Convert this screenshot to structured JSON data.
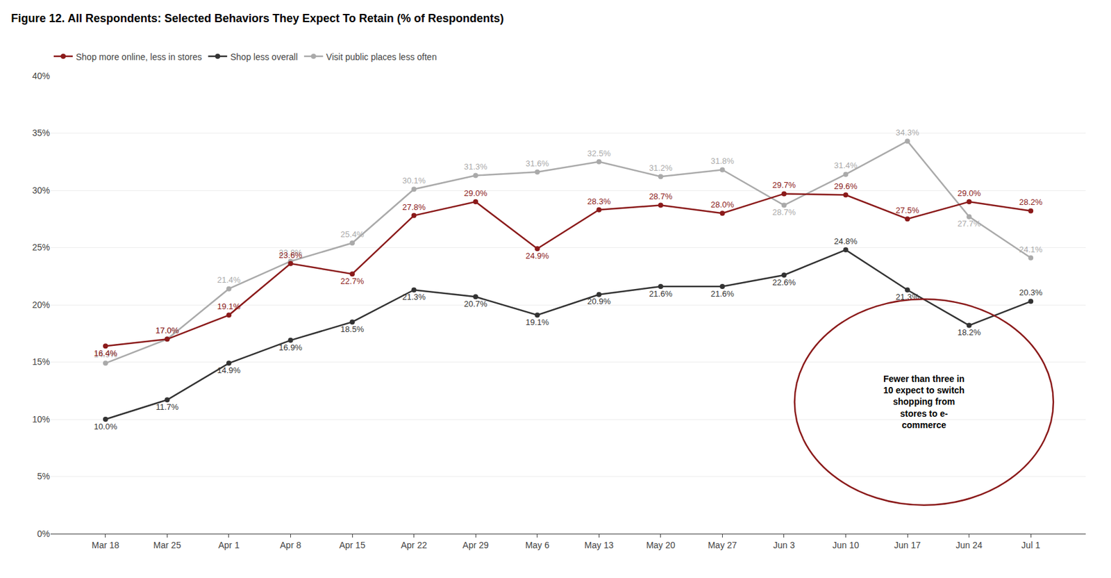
{
  "chart_data": {
    "type": "line",
    "title": "Figure 12. All Respondents: Selected Behaviors They Expect To Retain (% of Respondents)",
    "categories": [
      "Mar 18",
      "Mar 25",
      "Apr 1",
      "Apr 8",
      "Apr 15",
      "Apr 22",
      "Apr 29",
      "May 6",
      "May 13",
      "May 20",
      "May 27",
      "Jun 3",
      "Jun 10",
      "Jun 17",
      "Jun 24",
      "Jul 1"
    ],
    "series": [
      {
        "name": "Shop more online, less in stores",
        "color": "#8B1A1A",
        "values": [
          16.4,
          17.0,
          19.1,
          23.6,
          22.7,
          27.8,
          29.0,
          24.9,
          28.3,
          28.7,
          28.0,
          29.7,
          29.6,
          27.5,
          29.0,
          28.2
        ],
        "value_labels": [
          "16.4%",
          "17.0%",
          "19.1%",
          "23.6%",
          "22.7%",
          "27.8%",
          "29.0%",
          "24.9%",
          "28.3%",
          "28.7%",
          "28.0%",
          "29.7%",
          "29.6%",
          "27.5%",
          "29.0%",
          "28.2%"
        ]
      },
      {
        "name": "Shop less overall",
        "color": "#333333",
        "values": [
          10.0,
          11.7,
          14.9,
          16.9,
          18.5,
          21.3,
          20.7,
          19.1,
          20.9,
          21.6,
          21.6,
          22.6,
          24.8,
          21.3,
          18.2,
          20.3
        ],
        "value_labels": [
          "10.0%",
          "11.7%",
          "14.9%",
          "16.9%",
          "18.5%",
          "21.3%",
          "20.7%",
          "19.1%",
          "20.9%",
          "21.6%",
          "21.6%",
          "22.6%",
          "24.8%",
          "21.3%",
          "18.2%",
          "20.3%"
        ]
      },
      {
        "name": "Visit public places less often",
        "color": "#AAAAAA",
        "values": [
          14.9,
          17.0,
          21.4,
          23.8,
          25.4,
          30.1,
          31.3,
          31.6,
          32.5,
          31.2,
          31.8,
          28.7,
          31.4,
          34.3,
          27.7,
          24.1
        ],
        "value_labels": [
          "14.9%",
          "17.0%",
          "21.4%",
          "23.8%",
          "25.4%",
          "30.1%",
          "31.3%",
          "31.6%",
          "32.5%",
          "31.2%",
          "31.8%",
          "28.7%",
          "31.4%",
          "34.3%",
          "27.7%",
          "24.1%"
        ]
      }
    ],
    "ylim": [
      0,
      40
    ],
    "yticks": [
      {
        "value": 0,
        "label": "0%"
      },
      {
        "value": 5,
        "label": "5%"
      },
      {
        "value": 10,
        "label": "10%"
      },
      {
        "value": 15,
        "label": "15%"
      },
      {
        "value": 20,
        "label": "20%"
      },
      {
        "value": 25,
        "label": "25%"
      },
      {
        "value": 30,
        "label": "30%"
      },
      {
        "value": 35,
        "label": "35%"
      },
      {
        "value": 40,
        "label": "40%"
      }
    ],
    "grid": true,
    "legend": "top left",
    "data_labels": true,
    "marker": "circle",
    "annotations": [
      {
        "text": "Fewer than three in\n10 expect to switch\nshopping from\nstores to e-\ncommerce",
        "color": "#8B1A1A"
      }
    ]
  }
}
